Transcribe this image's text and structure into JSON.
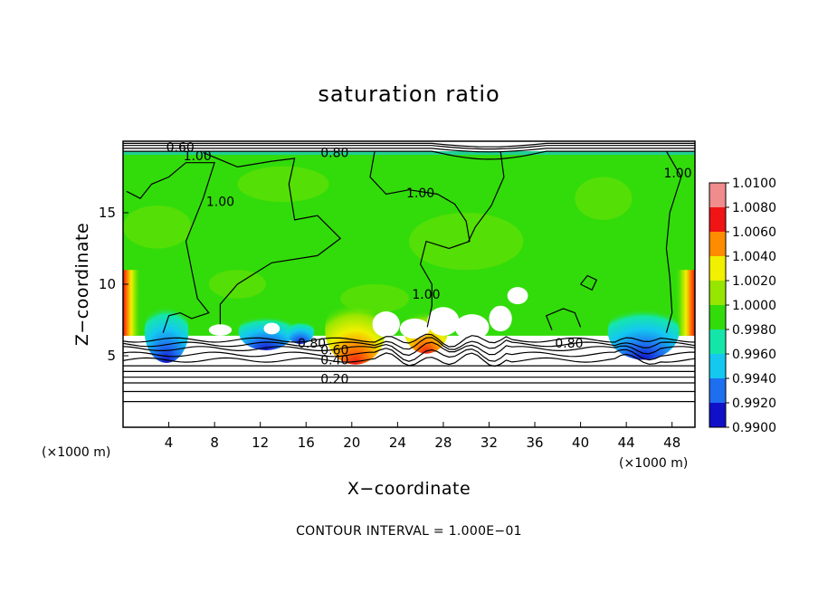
{
  "chart_data": {
    "type": "heatmap",
    "title": "saturation ratio",
    "xlabel": "X−coordinate",
    "ylabel": "Z−coordinate",
    "x_unit_label": "(×1000 m)",
    "z_unit_label": "(×1000 m)",
    "xlim": [
      0,
      50
    ],
    "ylim": [
      0,
      20
    ],
    "x_ticks": [
      4,
      8,
      12,
      16,
      20,
      24,
      28,
      32,
      36,
      40,
      44,
      48
    ],
    "x_tick_labels": [
      "4",
      "8",
      "12",
      "16",
      "20",
      "24",
      "28",
      "32",
      "36",
      "40",
      "44",
      "48"
    ],
    "y_ticks": [
      5,
      10,
      15
    ],
    "y_tick_labels": [
      "5",
      "10",
      "15"
    ],
    "colorbar": {
      "min": 0.99,
      "max": 1.01,
      "levels": [
        0.99,
        0.992,
        0.994,
        0.996,
        0.998,
        1.0,
        1.002,
        1.004,
        1.006,
        1.008,
        1.01
      ],
      "labels": [
        "0.9900",
        "0.9920",
        "0.9940",
        "0.9960",
        "0.9980",
        "1.0000",
        "1.0020",
        "1.0040",
        "1.0060",
        "1.0080",
        "1.0100"
      ],
      "colors": [
        "#3c0a9a",
        "#1010c8",
        "#1e6ef0",
        "#14c8f0",
        "#14e6aa",
        "#32dc0a",
        "#96e600",
        "#f0f000",
        "#ff8c00",
        "#f01414",
        "#f08c8c"
      ]
    },
    "contour_labels": [
      {
        "text": "0.60",
        "x": 5.0,
        "z": 19.6
      },
      {
        "text": "1.00",
        "x": 6.5,
        "z": 19.0
      },
      {
        "text": "0.80",
        "x": 18.5,
        "z": 19.2
      },
      {
        "text": "1.00",
        "x": 26.0,
        "z": 16.4
      },
      {
        "text": "1.00",
        "x": 8.5,
        "z": 15.8
      },
      {
        "text": "1.00",
        "x": 48.5,
        "z": 17.8
      },
      {
        "text": "1.00",
        "x": 26.5,
        "z": 9.3
      },
      {
        "text": "0.80",
        "x": 16.5,
        "z": 5.9
      },
      {
        "text": "0.60",
        "x": 18.5,
        "z": 5.4
      },
      {
        "text": "0.40",
        "x": 18.5,
        "z": 4.7
      },
      {
        "text": "0.20",
        "x": 18.5,
        "z": 3.4
      },
      {
        "text": "0.80",
        "x": 39.0,
        "z": 5.9
      }
    ],
    "stratified_contours_z": [
      1.8,
      2.5,
      3.1,
      3.5,
      3.9,
      4.3,
      4.7,
      5.1,
      5.5,
      5.8,
      6.1
    ],
    "footnote": "CONTOUR INTERVAL = 1.000E−01"
  }
}
